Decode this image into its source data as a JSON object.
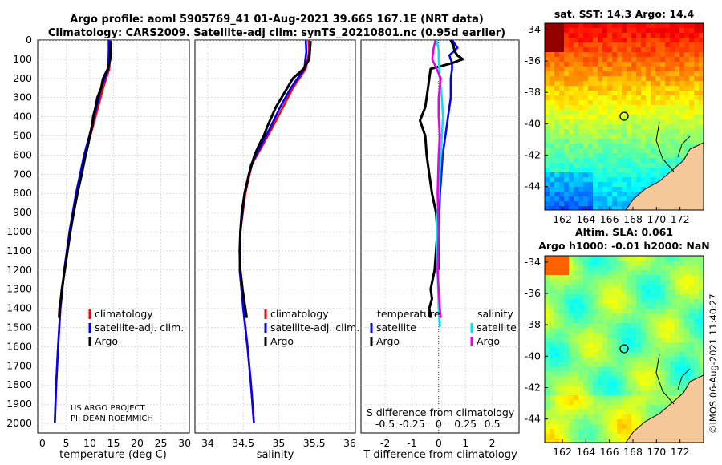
{
  "header": {
    "title_line1": "Argo profile: aoml 5905769_41 01-Aug-2021 39.66S 167.1E (NRT data)",
    "title_line2": "Climatology: CARS2009. Satellite-adj clim: synTS_20210801.nc (0.95d earlier)"
  },
  "credit": {
    "line1": "US ARGO PROJECT",
    "line2": "PI: DEAN ROEMMICH"
  },
  "watermark": "©IMOS 06-Aug-2021 11:40:27",
  "colors": {
    "climatology": "#ff0000",
    "satellite": "#0000ff",
    "argo": "#000000",
    "temp_diff_sat": "#00e5ee",
    "sal_diff": "#e600e6",
    "land": "#f5c89a"
  },
  "chart_data": [
    {
      "id": "temperature",
      "type": "line",
      "xlabel": "temperature (deg C)",
      "ylabel": "",
      "xlim": [
        -1,
        31
      ],
      "ylim": [
        2050,
        0
      ],
      "xticks": [
        0,
        5,
        10,
        15,
        20,
        25,
        30
      ],
      "yticks": [
        0,
        100,
        200,
        300,
        400,
        500,
        600,
        700,
        800,
        900,
        1000,
        1100,
        1200,
        1300,
        1400,
        1500,
        1600,
        1700,
        1800,
        1900,
        2000
      ],
      "legend": [
        "climatology",
        "satellite-adj. clim.",
        "Argo"
      ],
      "series": [
        {
          "name": "climatology",
          "color": "#ff0000",
          "depth": [
            0,
            60,
            150,
            250,
            400,
            500,
            600,
            800,
            1000,
            1200,
            1400,
            1600,
            1800,
            2000
          ],
          "values": [
            14.3,
            14.3,
            14.1,
            12.8,
            11.2,
            10.1,
            9.0,
            7.3,
            5.8,
            4.6,
            3.8,
            3.3,
            2.9,
            2.6
          ]
        },
        {
          "name": "satellite-adj. clim.",
          "color": "#0000ff",
          "depth": [
            0,
            60,
            150,
            250,
            400,
            500,
            600,
            800,
            1000,
            1200,
            1400,
            1600,
            1800,
            2000
          ],
          "values": [
            14.0,
            14.0,
            13.9,
            12.4,
            10.9,
            9.9,
            8.8,
            7.1,
            5.7,
            4.6,
            3.8,
            3.3,
            2.9,
            2.6
          ]
        },
        {
          "name": "Argo",
          "color": "#000000",
          "depth": [
            5,
            100,
            150,
            200,
            250,
            300,
            350,
            400,
            450,
            500,
            550,
            600,
            700,
            800,
            900,
            1000,
            1100,
            1200,
            1300,
            1350,
            1400,
            1450
          ],
          "values": [
            14.4,
            14.3,
            13.8,
            12.8,
            12.4,
            11.6,
            11.2,
            10.7,
            10.5,
            10.0,
            9.6,
            9.1,
            8.3,
            7.4,
            6.6,
            5.9,
            5.3,
            4.7,
            4.1,
            3.9,
            3.6,
            3.5
          ]
        }
      ]
    },
    {
      "id": "salinity",
      "type": "line",
      "xlabel": "salinity",
      "xlim": [
        33.82,
        36.08
      ],
      "ylim": [
        2050,
        0
      ],
      "xticks": [
        34,
        34.5,
        35,
        35.5,
        36
      ],
      "legend": [
        "climatology",
        "satellite-adj. clim.",
        "Argo"
      ],
      "series": [
        {
          "name": "climatology",
          "color": "#ff0000",
          "depth": [
            0,
            60,
            150,
            250,
            350,
            450,
            550,
            650,
            800,
            1000,
            1200,
            1400,
            1600,
            1800,
            2000
          ],
          "values": [
            35.42,
            35.43,
            35.38,
            35.2,
            35.06,
            34.92,
            34.77,
            34.62,
            34.53,
            34.46,
            34.45,
            34.5,
            34.56,
            34.61,
            34.65
          ]
        },
        {
          "name": "satellite-adj. clim.",
          "color": "#0000ff",
          "depth": [
            0,
            60,
            150,
            250,
            350,
            450,
            550,
            650,
            800,
            1000,
            1200,
            1400,
            1600,
            1800,
            2000
          ],
          "values": [
            35.38,
            35.39,
            35.36,
            35.17,
            35.02,
            34.89,
            34.75,
            34.61,
            34.52,
            34.46,
            34.45,
            34.5,
            34.56,
            34.61,
            34.65
          ]
        },
        {
          "name": "Argo",
          "color": "#000000",
          "depth": [
            5,
            100,
            150,
            200,
            250,
            300,
            350,
            400,
            450,
            500,
            550,
            600,
            700,
            800,
            900,
            1000,
            1100,
            1200,
            1300,
            1400,
            1450
          ],
          "values": [
            35.45,
            35.43,
            35.35,
            35.2,
            35.12,
            35.04,
            34.96,
            34.9,
            34.84,
            34.79,
            34.72,
            34.66,
            34.58,
            34.52,
            34.48,
            34.46,
            34.45,
            34.46,
            34.49,
            34.53,
            34.55
          ]
        }
      ]
    },
    {
      "id": "difference",
      "type": "line",
      "xlabel": "T difference from climatology",
      "xlabel_top": "S difference from climatology",
      "xlim": [
        -2.9,
        3.0
      ],
      "ylim": [
        2050,
        0
      ],
      "xticks": [
        -2,
        -1,
        0,
        1,
        2
      ],
      "s_ticks": [
        -0.5,
        -0.25,
        0,
        0.25,
        0.5
      ],
      "s_tick_labels": [
        "-0.5",
        "-0.25",
        "0",
        "0.25",
        "0.5"
      ],
      "legend_temperature_title": "temperature",
      "legend_salinity_title": "salinity",
      "legend_temperature": [
        "satellite",
        "Argo"
      ],
      "legend_salinity": [
        "satellite",
        "Argo"
      ],
      "series": [
        {
          "name": "T satellite",
          "color": "#0000ff",
          "depth": [
            0,
            40,
            80,
            120,
            150,
            200,
            300,
            400,
            500,
            600,
            700,
            800,
            1000,
            1200
          ],
          "values": [
            0.5,
            0.7,
            0.4,
            0.5,
            0.5,
            0.45,
            0.45,
            0.35,
            0.25,
            0.15,
            0.1,
            0.05,
            0.0,
            0.0
          ]
        },
        {
          "name": "T Argo",
          "color": "#000000",
          "depth": [
            0,
            30,
            60,
            80,
            100,
            120,
            150,
            250,
            350,
            420,
            500,
            600,
            700,
            800,
            900,
            1000,
            1100,
            1200,
            1300,
            1350,
            1400,
            1450
          ],
          "values": [
            0.45,
            0.55,
            0.6,
            0.7,
            0.9,
            0.5,
            -0.3,
            -0.4,
            -0.5,
            -0.7,
            -0.5,
            -0.45,
            -0.35,
            -0.25,
            -0.1,
            -0.05,
            -0.1,
            -0.15,
            -0.3,
            -0.25,
            -0.35,
            -0.3
          ]
        },
        {
          "name": "S satellite",
          "color": "#00e5ee",
          "depth": [
            0,
            50,
            100,
            200,
            300,
            400,
            500,
            600,
            800,
            1000,
            1200,
            1400,
            1500
          ],
          "values": [
            -0.02,
            0.0,
            0.0,
            0.01,
            0.03,
            0.04,
            0.03,
            0.02,
            0.0,
            -0.02,
            -0.01,
            0.0,
            0.01
          ]
        },
        {
          "name": "S Argo",
          "color": "#e600e6",
          "depth": [
            0,
            50,
            100,
            150,
            200,
            300,
            400,
            500,
            600,
            800,
            1000,
            1200,
            1300,
            1400,
            1450
          ],
          "values": [
            -0.03,
            -0.05,
            -0.06,
            -0.02,
            0.02,
            0.0,
            0.0,
            0.01,
            0.0,
            -0.01,
            0.0,
            -0.01,
            0.0,
            0.01,
            0.02
          ]
        }
      ]
    },
    {
      "id": "sst_map",
      "type": "heatmap",
      "title": "sat. SST: 14.3 Argo: 14.4",
      "xticks": [
        162,
        164,
        166,
        168,
        170,
        172
      ],
      "yticks": [
        -34,
        -36,
        -38,
        -40,
        -42,
        -44
      ],
      "xlim": [
        160.5,
        174
      ],
      "ylim": [
        -45.5,
        -33.6
      ],
      "float_position": {
        "lon": 167.1,
        "lat": -39.66
      }
    },
    {
      "id": "sla_map",
      "type": "heatmap",
      "title_line1": "Altim. SLA: 0.061",
      "title_line2": "Argo h1000: -0.01 h2000: NaN",
      "xticks": [
        162,
        164,
        166,
        168,
        170,
        172
      ],
      "yticks": [
        -34,
        -36,
        -38,
        -40,
        -42,
        -44
      ],
      "xlim": [
        160.5,
        174
      ],
      "ylim": [
        -45.5,
        -33.6
      ],
      "float_position": {
        "lon": 167.1,
        "lat": -39.66
      }
    }
  ]
}
